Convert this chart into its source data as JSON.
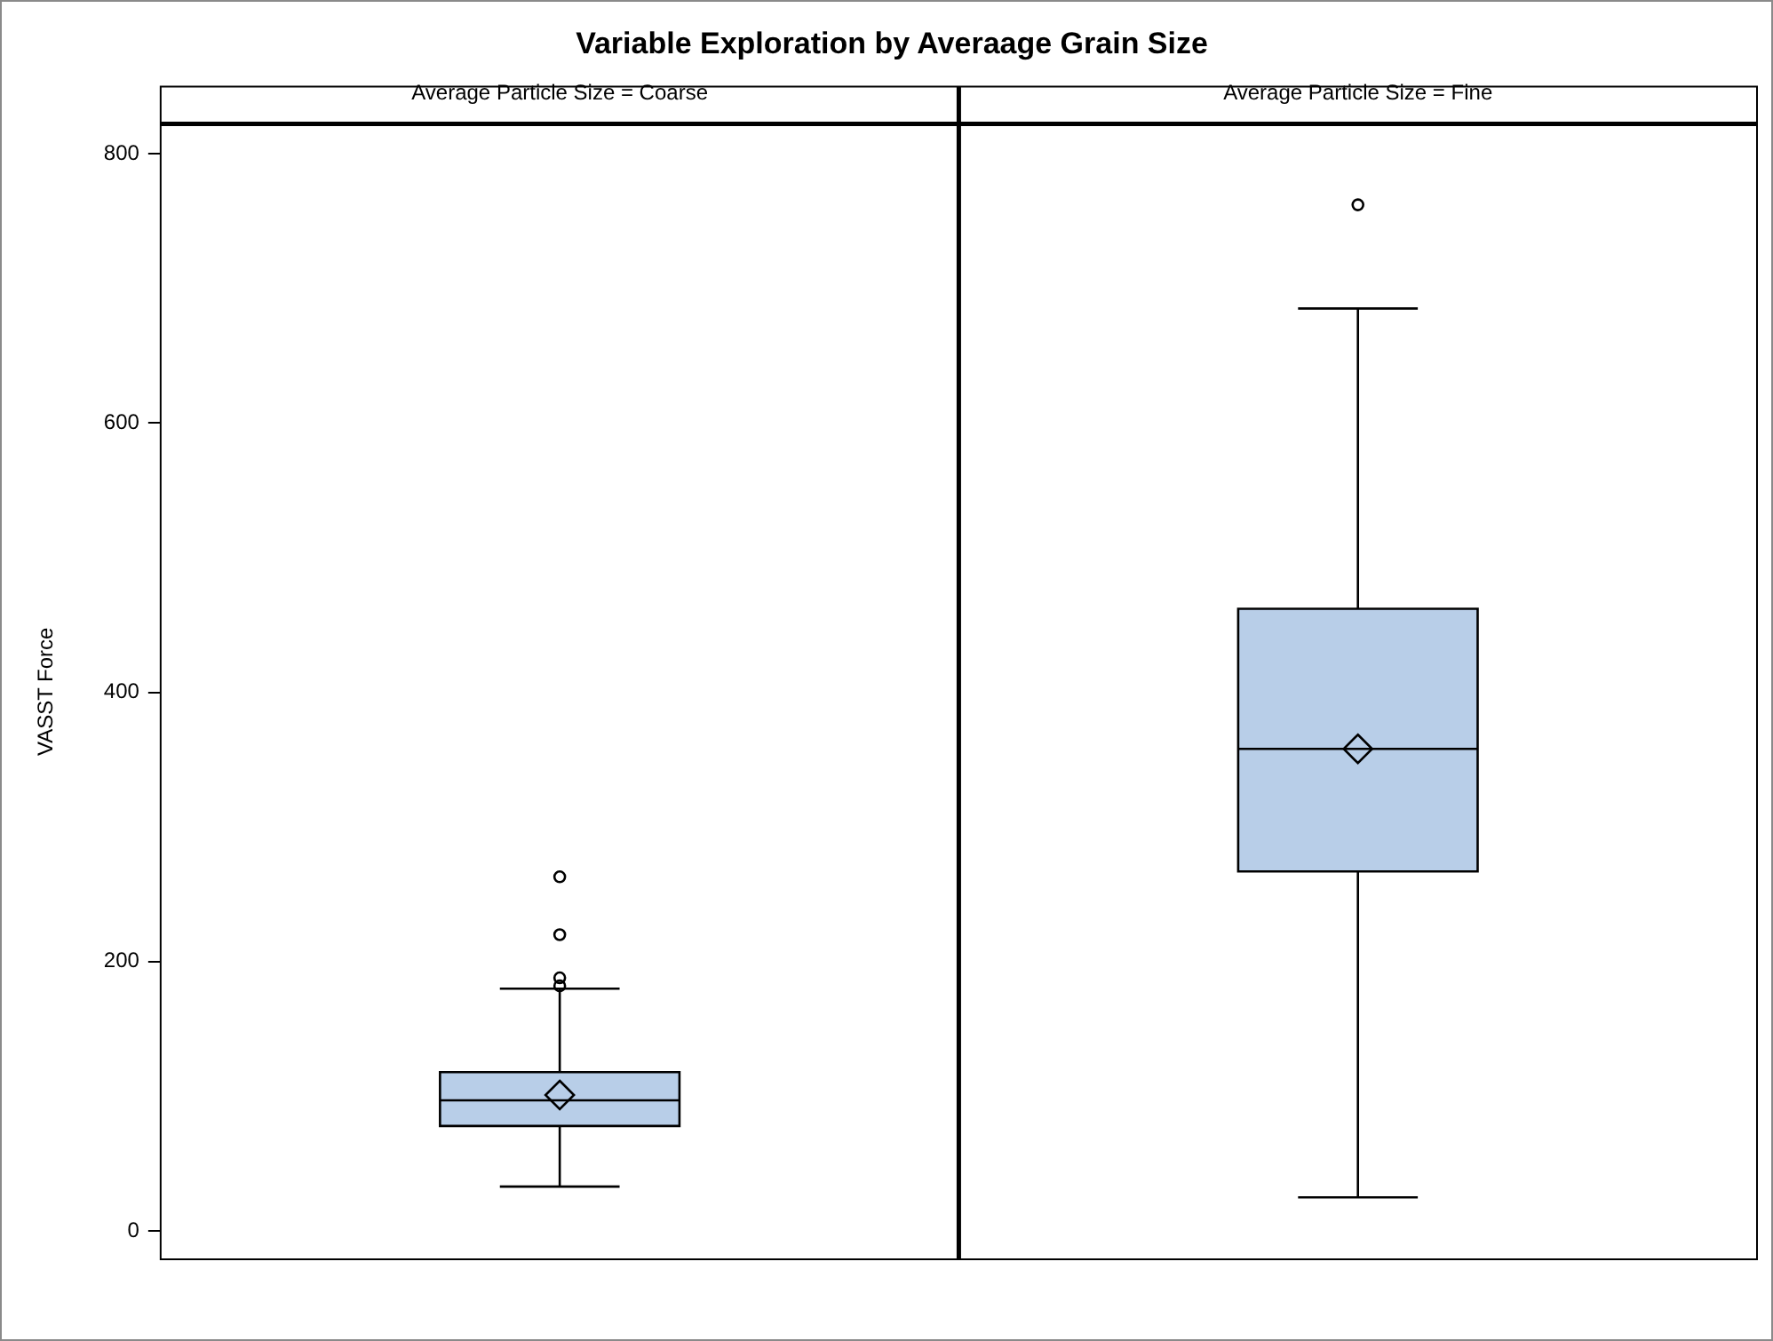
{
  "chart_data": {
    "type": "box",
    "title": "Variable Exploration by Averaage Grain Size",
    "ylabel": "VASST Force",
    "categories": [
      "Average Particle Size = Coarse",
      "Average Particle Size = Fine"
    ],
    "series": [
      {
        "color": "#b8cee8",
        "boxes": [
          {
            "low": 33,
            "q1": 78,
            "median": 97,
            "q3": 118,
            "high": 180,
            "mean": 101,
            "outliers": [
              182,
              188,
              220,
              263
            ]
          },
          {
            "low": 25,
            "q1": 267,
            "median": 358,
            "q3": 462,
            "high": 685,
            "mean": 358,
            "outliers": [
              762
            ]
          }
        ]
      }
    ],
    "ylim": [
      -21,
      822
    ],
    "yticks": [
      0,
      200,
      400,
      600,
      800
    ],
    "grid": false,
    "legend": false
  }
}
